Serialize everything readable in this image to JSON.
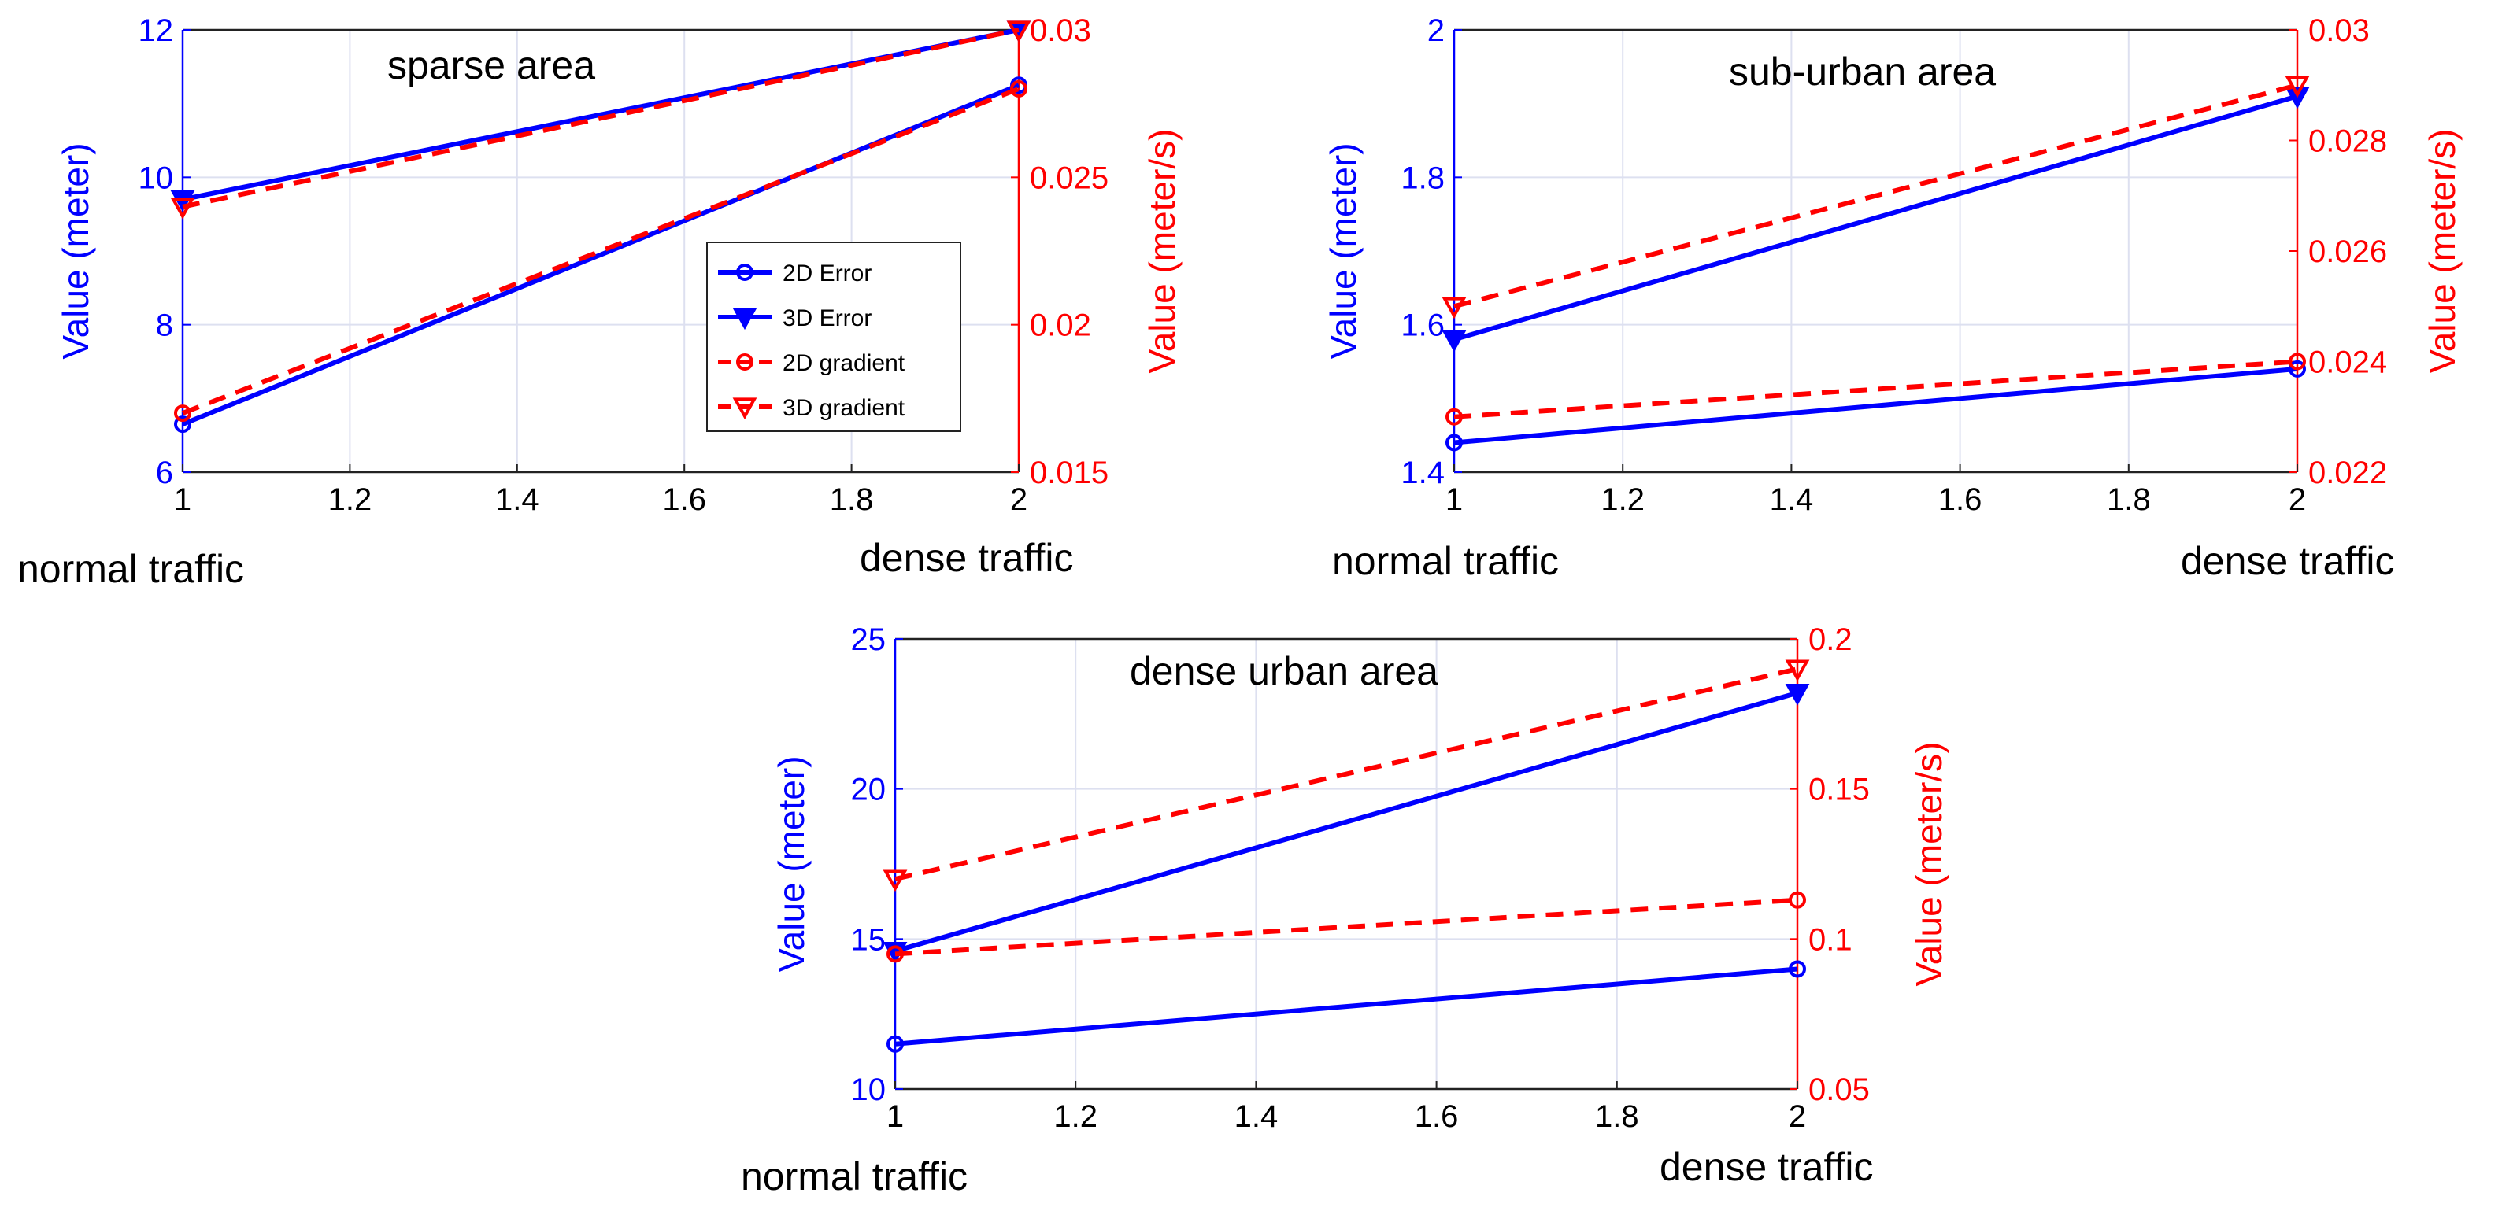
{
  "colors": {
    "left": "#0000ff",
    "right": "#ff0000",
    "grid": "#dde0f0",
    "text": "#000000"
  },
  "legend": [
    {
      "label": "2D Error",
      "color": "#0000ff",
      "marker": "circle",
      "dash": false
    },
    {
      "label": "3D Error",
      "color": "#0000ff",
      "marker": "triangle-down-filled",
      "dash": false
    },
    {
      "label": "2D gradient",
      "color": "#ff0000",
      "marker": "circle",
      "dash": true
    },
    {
      "label": "3D gradient",
      "color": "#ff0000",
      "marker": "triangle-down",
      "dash": true
    }
  ],
  "chart_data": [
    {
      "type": "line",
      "title": "sparse area",
      "x": [
        1,
        2
      ],
      "xlim": [
        1,
        2
      ],
      "xticks": [
        "1",
        "1.2",
        "1.4",
        "1.6",
        "1.8",
        "2"
      ],
      "xlabel_left": "normal traffic",
      "xlabel_right": "dense traffic",
      "ylabel_left": "Value (meter)",
      "ylabel_right": "Value (meter/s)",
      "ylim_left": [
        6,
        12
      ],
      "yticks_left": [
        "6",
        "8",
        "10",
        "12"
      ],
      "ylim_right": [
        0.015,
        0.03
      ],
      "yticks_right": [
        "0.015",
        "0.02",
        "0.025",
        "0.03"
      ],
      "legend_position": "center-right",
      "series": [
        {
          "name": "2D Error",
          "axis": "left",
          "values": [
            6.65,
            11.25
          ]
        },
        {
          "name": "3D Error",
          "axis": "left",
          "values": [
            9.7,
            12.0
          ]
        },
        {
          "name": "2D gradient",
          "axis": "right",
          "values": [
            0.017,
            0.028
          ]
        },
        {
          "name": "3D gradient",
          "axis": "right",
          "values": [
            0.024,
            0.03
          ]
        }
      ]
    },
    {
      "type": "line",
      "title": "sub-urban area",
      "x": [
        1,
        2
      ],
      "xlim": [
        1,
        2
      ],
      "xticks": [
        "1",
        "1.2",
        "1.4",
        "1.6",
        "1.8",
        "2"
      ],
      "xlabel_left": "normal traffic",
      "xlabel_right": "dense traffic",
      "ylabel_left": "Value (meter)",
      "ylabel_right": "Value (meter/s)",
      "ylim_left": [
        1.4,
        2
      ],
      "yticks_left": [
        "1.4",
        "1.6",
        "1.8",
        "2"
      ],
      "ylim_right": [
        0.022,
        0.03
      ],
      "yticks_right": [
        "0.022",
        "0.024",
        "0.026",
        "0.028",
        "0.03"
      ],
      "series": [
        {
          "name": "2D Error",
          "axis": "left",
          "values": [
            1.44,
            1.54
          ]
        },
        {
          "name": "3D Error",
          "axis": "left",
          "values": [
            1.58,
            1.91
          ]
        },
        {
          "name": "2D gradient",
          "axis": "right",
          "values": [
            0.023,
            0.024
          ]
        },
        {
          "name": "3D gradient",
          "axis": "right",
          "values": [
            0.025,
            0.029
          ]
        }
      ]
    },
    {
      "type": "line",
      "title": "dense urban area",
      "x": [
        1,
        2
      ],
      "xlim": [
        1,
        2
      ],
      "xticks": [
        "1",
        "1.2",
        "1.4",
        "1.6",
        "1.8",
        "2"
      ],
      "xlabel_left": "normal traffic",
      "xlabel_right": "dense traffic",
      "ylabel_left": "Value (meter)",
      "ylabel_right": "Value (meter/s)",
      "ylim_left": [
        10,
        25
      ],
      "yticks_left": [
        "10",
        "15",
        "20",
        "25"
      ],
      "ylim_right": [
        0.05,
        0.2
      ],
      "yticks_right": [
        "0.05",
        "0.1",
        "0.15",
        "0.2"
      ],
      "series": [
        {
          "name": "2D Error",
          "axis": "left",
          "values": [
            11.5,
            14.0
          ]
        },
        {
          "name": "3D Error",
          "axis": "left",
          "values": [
            14.6,
            23.2
          ]
        },
        {
          "name": "2D gradient",
          "axis": "right",
          "values": [
            0.095,
            0.113
          ]
        },
        {
          "name": "3D gradient",
          "axis": "right",
          "values": [
            0.12,
            0.19
          ]
        }
      ]
    }
  ]
}
